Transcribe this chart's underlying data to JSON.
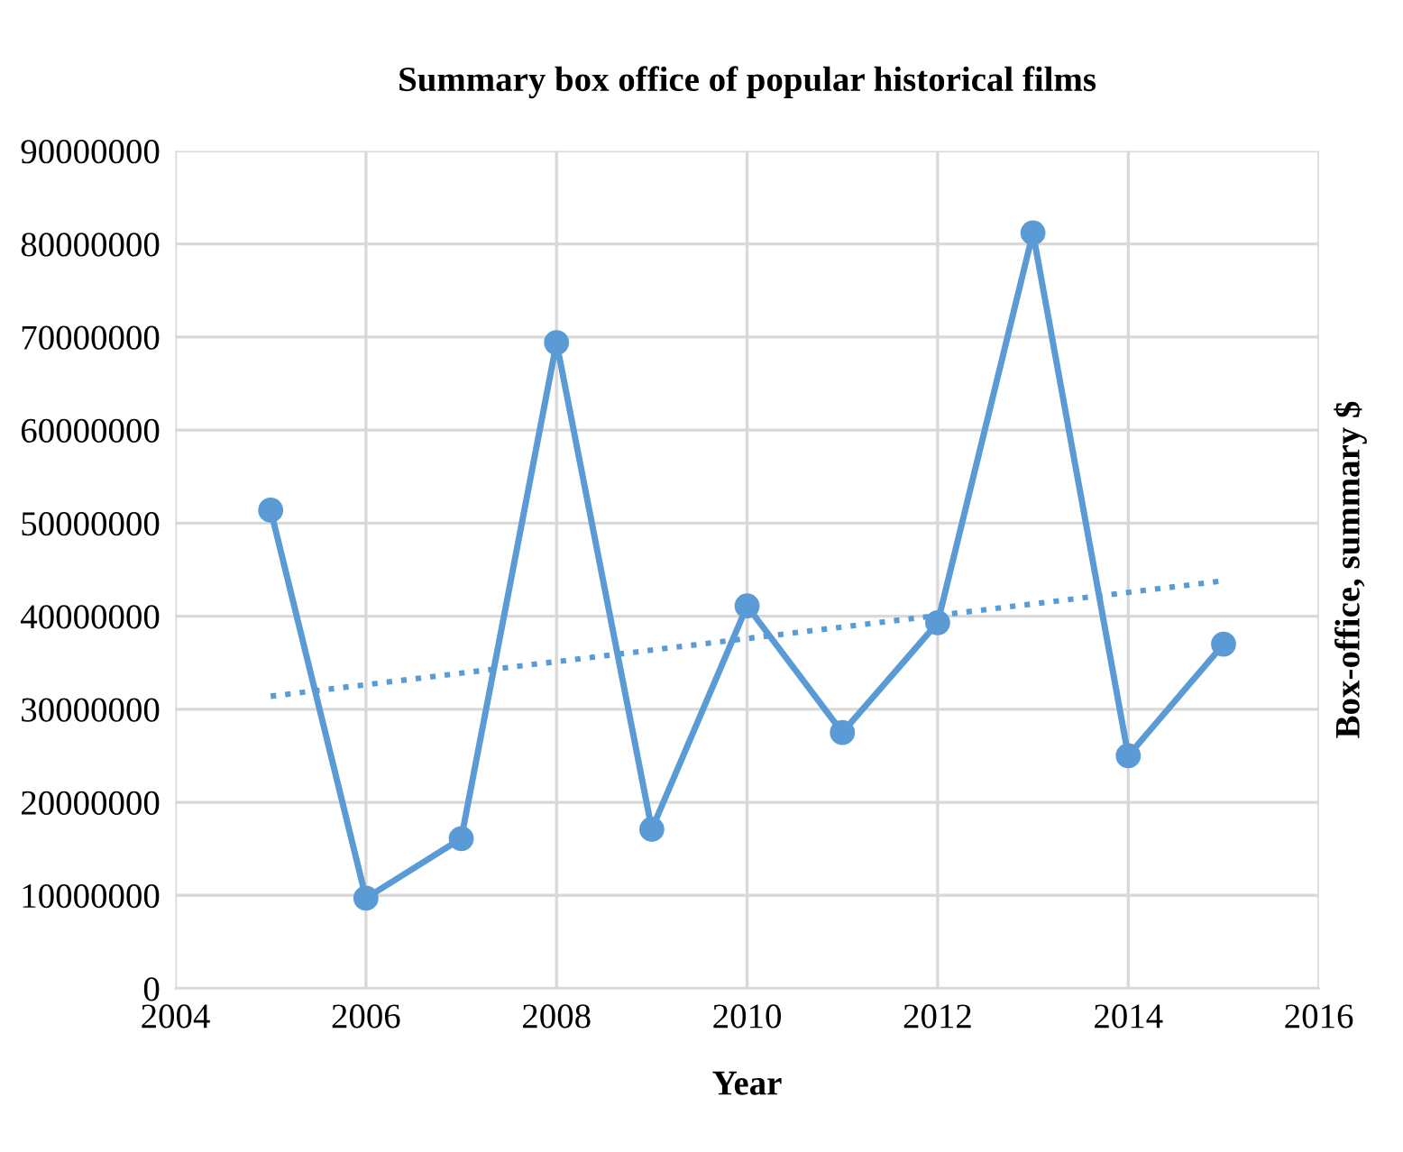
{
  "chart_data": {
    "type": "line",
    "title": "Summary box office of popular historical films",
    "xlabel": "Year",
    "ylabel": "Box-office, summary $",
    "series": [
      {
        "color": "#5b9bd5",
        "marker": "circle",
        "line_style": "solid",
        "x": [
          2005,
          2006,
          2007,
          2008,
          2009,
          2010,
          2011,
          2012,
          2013,
          2014,
          2015
        ],
        "values": [
          51400000,
          9700000,
          16100000,
          69400000,
          17100000,
          41100000,
          27500000,
          39300000,
          81200000,
          25000000,
          37000000
        ]
      },
      {
        "color": "#5b9bd5",
        "marker": "none",
        "line_style": "dotted",
        "x": [
          2005,
          2015
        ],
        "values": [
          31400000,
          43800000
        ]
      }
    ],
    "xlim": [
      2004,
      2016
    ],
    "xticks": [
      2004,
      2006,
      2008,
      2010,
      2012,
      2014,
      2016
    ],
    "ylim": [
      0,
      90000000
    ],
    "yticks": [
      0,
      10000000,
      20000000,
      30000000,
      40000000,
      50000000,
      60000000,
      70000000,
      80000000,
      90000000
    ],
    "grid": true,
    "legend": false
  }
}
